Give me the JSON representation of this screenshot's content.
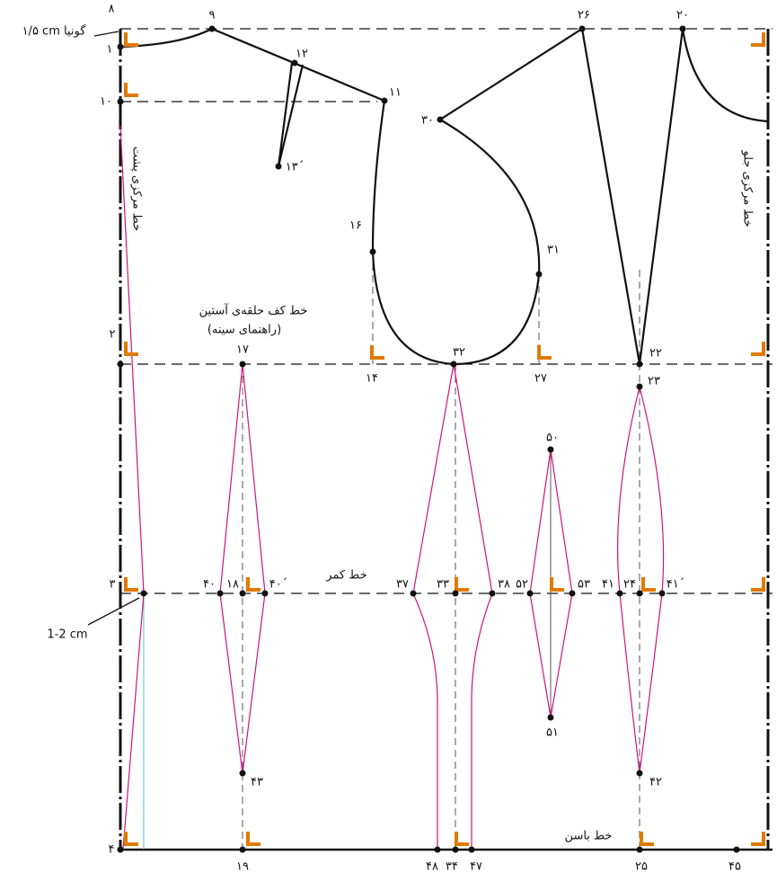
{
  "labels": [
    "۱/۵ cm گونیا",
    "۸",
    "۹",
    "۱۲",
    "۱۱",
    "۱۳´",
    "۱",
    "۱۰",
    "خط مرکزی پشت",
    "۱۶",
    "خط کف حلقه‌ی آستین",
    "(راهنمای سینه)",
    "۱۷",
    "۲",
    "۱۴",
    "۳۲",
    "۲۷",
    "۳۰",
    "۳۱",
    "۲۶",
    "۲۰",
    "۲۲",
    "۲۳",
    "خط مرکزی جلو",
    "۵۰",
    "۴۰",
    "۱۸",
    "۴۰´",
    "خط کمر",
    "۳۷",
    "۳۳",
    "۳۸",
    "۵۲",
    "۵۳",
    "۴۱",
    "۲۴",
    "۴۱´",
    "۳",
    "1-2 cm",
    "۵۱",
    "۴۳",
    "۴۲",
    "خط باسن",
    "۴",
    "۱۹",
    "۴۸",
    "۳۴",
    "۴۷",
    "۲۵",
    "۴۵"
  ]
}
